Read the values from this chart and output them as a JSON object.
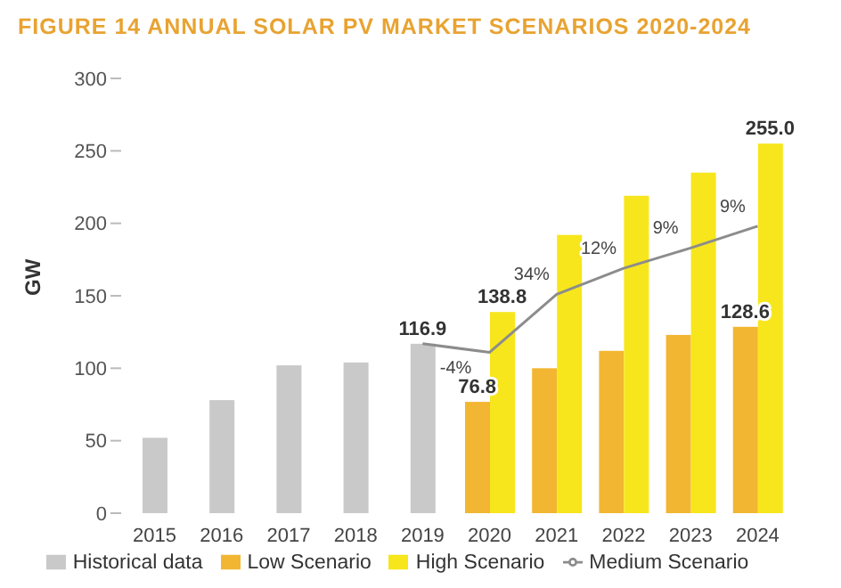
{
  "chart_data": {
    "type": "bar",
    "title": "FIGURE 14 ANNUAL SOLAR PV MARKET SCENARIOS 2020-2024",
    "ylabel": "GW",
    "categories": [
      "2015",
      "2016",
      "2017",
      "2018",
      "2019",
      "2020",
      "2021",
      "2022",
      "2023",
      "2024"
    ],
    "series": [
      {
        "name": "Historical data",
        "color": "#c9c9c9",
        "values": [
          52,
          78,
          102,
          104,
          116.9,
          null,
          null,
          null,
          null,
          null
        ],
        "value_labels": [
          null,
          null,
          null,
          null,
          "116.9",
          null,
          null,
          null,
          null,
          null
        ]
      },
      {
        "name": "Low Scenario",
        "color": "#f2b632",
        "values": [
          null,
          null,
          null,
          null,
          null,
          76.8,
          100,
          112,
          123,
          128.6
        ],
        "value_labels": [
          null,
          null,
          null,
          null,
          null,
          "76.8",
          null,
          null,
          null,
          "128.6"
        ]
      },
      {
        "name": "High Scenario",
        "color": "#f7e61c",
        "values": [
          null,
          null,
          null,
          null,
          null,
          138.8,
          192,
          219,
          235,
          255.0
        ],
        "value_labels": [
          null,
          null,
          null,
          null,
          null,
          "138.8",
          null,
          null,
          null,
          "255.0"
        ]
      },
      {
        "name": "Medium Scenario",
        "type": "line",
        "color": "#8c8c8c",
        "values": [
          null,
          null,
          null,
          null,
          116.9,
          111,
          151,
          169,
          183,
          198
        ]
      }
    ],
    "annotations": [
      {
        "text": "-4%",
        "x": "2020",
        "y": 111
      },
      {
        "text": "34%",
        "x": "2021",
        "y": 151
      },
      {
        "text": "12%",
        "x": "2022",
        "y": 169
      },
      {
        "text": "9%",
        "x": "2023",
        "y": 183
      },
      {
        "text": "9%",
        "x": "2024",
        "y": 198
      }
    ],
    "ylim": [
      0,
      300
    ],
    "yticks": [
      0,
      50,
      100,
      150,
      200,
      250,
      300
    ],
    "grid": false,
    "legend": "bottom",
    "marker": "none",
    "line_style": "solid"
  }
}
